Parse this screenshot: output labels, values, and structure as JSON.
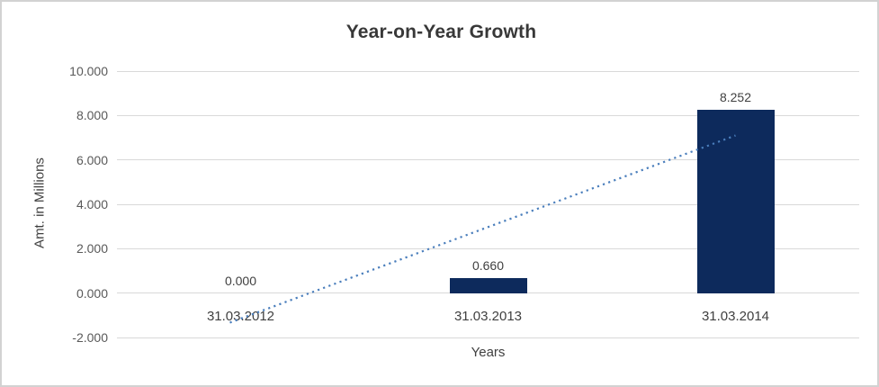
{
  "window": {
    "background": "#ffffff",
    "border_color": "#d2d2d2"
  },
  "chart_data": {
    "type": "bar",
    "title": "Year-on-Year Growth",
    "xlabel": "Years",
    "ylabel": "Amt. in Millions",
    "categories": [
      "31.03.2012",
      "31.03.2013",
      "31.03.2014"
    ],
    "values": [
      0,
      0.66,
      8.252
    ],
    "data_labels": [
      "0.000",
      "0.660",
      "8.252"
    ],
    "ylim": [
      -2,
      10
    ],
    "yticks": [
      10,
      8,
      6,
      4,
      2,
      0,
      -2
    ],
    "ytick_labels": [
      "10.000",
      "8.000",
      "6.000",
      "4.000",
      "2.000",
      "0.000",
      "-2.000"
    ],
    "grid": "horizontal",
    "legend_position": "none",
    "bar_color": "#0d2a5c",
    "gridline_color": "#d9d9d9",
    "text_color": "#404040",
    "tick_color": "#595959",
    "trendline": {
      "type": "linear",
      "style": "dotted",
      "color": "#4a7ebc",
      "start_value": -1.15,
      "end_value": 7.1
    }
  }
}
